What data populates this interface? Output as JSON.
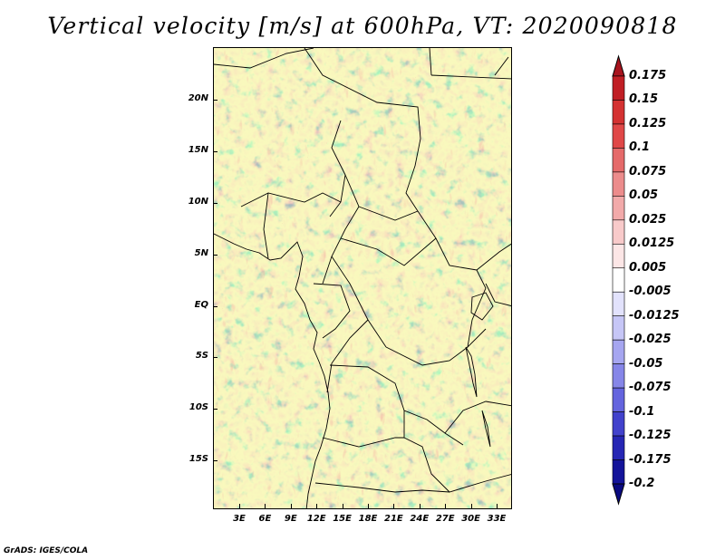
{
  "title": "Vertical velocity [m/s] at 600hPa, VT: 2020090818",
  "lat_labels": [
    "20N",
    "15N",
    "10N",
    "5N",
    "EQ",
    "5S",
    "10S",
    "15S"
  ],
  "lon_labels": [
    "3E",
    "6E",
    "9E",
    "12E",
    "15E",
    "18E",
    "21E",
    "24E",
    "27E",
    "30E",
    "33E"
  ],
  "colorbar": {
    "levels": [
      "0.175",
      "0.15",
      "0.125",
      "0.1",
      "0.075",
      "0.05",
      "0.025",
      "0.0125",
      "0.005",
      "-0.005",
      "-0.0125",
      "-0.025",
      "-0.05",
      "-0.075",
      "-0.1",
      "-0.125",
      "-0.175",
      "-0.2"
    ],
    "colors": [
      "#a8141e",
      "#c01e24",
      "#d43232",
      "#e04848",
      "#e56a6a",
      "#ec8c8c",
      "#f2aaaa",
      "#f8caca",
      "#fce6e6",
      "#ffffff",
      "#e2e2fc",
      "#c6c6f6",
      "#a6a6f0",
      "#8686e8",
      "#6464de",
      "#4242cc",
      "#2626b4",
      "#14149a",
      "#0a0a80"
    ]
  },
  "footer": "GrADS: IGES/COLA"
}
